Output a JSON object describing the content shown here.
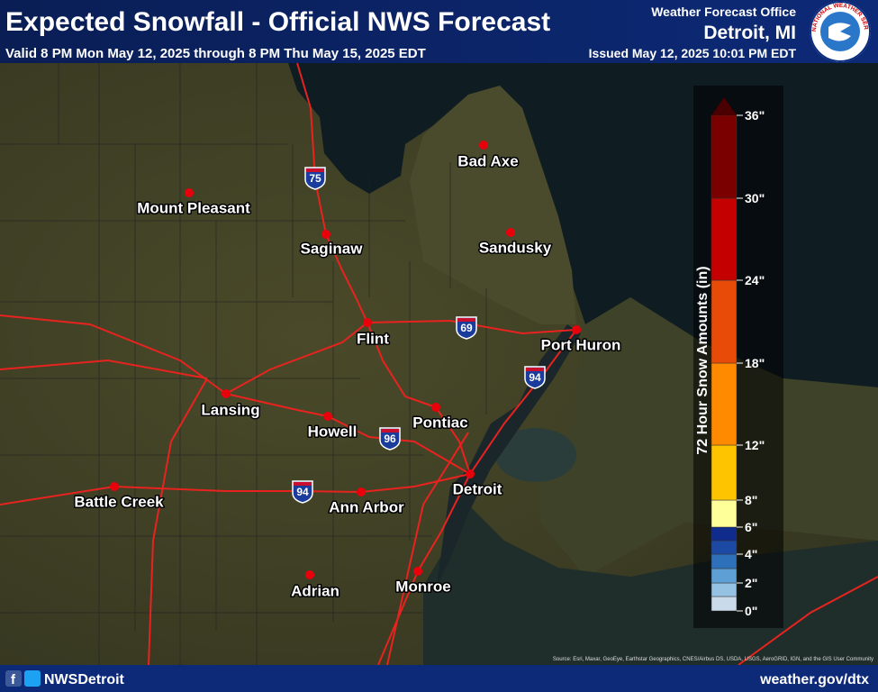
{
  "header": {
    "title": "Expected Snowfall - Official NWS Forecast",
    "subtitle": "Valid 8 PM Mon May 12, 2025 through 8 PM Thu May 15, 2025 EDT",
    "office_label": "Weather Forecast Office",
    "office": "Detroit, MI",
    "issued": "Issued May 12, 2025 10:01 PM EDT",
    "logo_text": "NATIONAL WEATHER SERVICE"
  },
  "map": {
    "cities": [
      "Bad Axe",
      "Mount Pleasant",
      "Saginaw",
      "Sandusky",
      "Flint",
      "Port Huron",
      "Lansing",
      "Howell",
      "Pontiac",
      "Battle Creek",
      "Ann Arbor",
      "Detroit",
      "Adrian",
      "Monroe"
    ],
    "interstates": [
      "75",
      "69",
      "94",
      "96",
      "94"
    ],
    "source": "Source: Esri, Maxar, GeoEye, Earthstar Geographics, CNES/Airbus DS, USDA, USGS, AeroGRID, IGN, and the GIS User Community"
  },
  "legend": {
    "title": "72 Hour Snow Amounts (in)",
    "ticks": [
      "0\"",
      "2\"",
      "4\"",
      "6\"",
      "8\"",
      "12\"",
      "18\"",
      "24\"",
      "30\"",
      "36\""
    ],
    "colors": [
      "#c9dbea",
      "#95c1e3",
      "#5e9fd5",
      "#2f70ba",
      "#1c49a3",
      "#0f2b8c",
      "#ffff99",
      "#ffc400",
      "#ff8a00",
      "#e84a08",
      "#c40000",
      "#7a0000",
      "#4a0000"
    ]
  },
  "footer": {
    "social": "NWSDetroit",
    "url": "weather.gov/dtx"
  }
}
